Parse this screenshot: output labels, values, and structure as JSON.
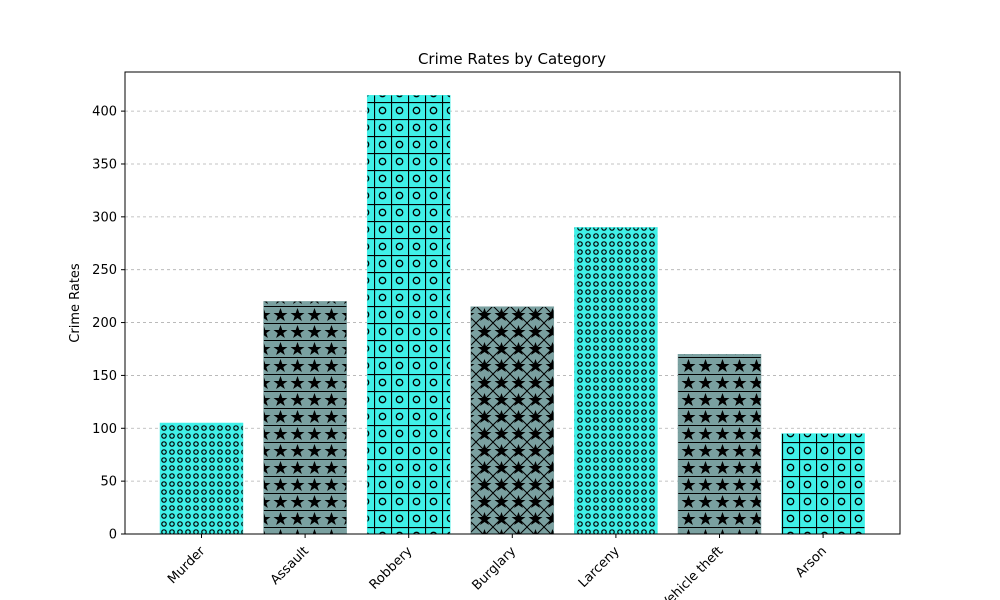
{
  "chart_data": {
    "type": "bar",
    "title": "Crime Rates by Category",
    "xlabel": "",
    "ylabel": "Crime Rates",
    "categories": [
      "Murder",
      "Assault",
      "Robbery",
      "Burglary",
      "Larceny",
      "Vehicle theft",
      "Arson"
    ],
    "values": [
      105,
      220,
      415,
      215,
      290,
      170,
      95
    ],
    "ylim": [
      0,
      437
    ],
    "yticks": [
      0,
      50,
      100,
      150,
      200,
      250,
      300,
      350,
      400
    ],
    "grid": "y-dashed",
    "bar_colors": [
      "#40f0e8",
      "#7aa0a0",
      "#40f0e8",
      "#7aa0a0",
      "#40f0e8",
      "#7aa0a0",
      "#40f0e8"
    ],
    "bar_patterns": [
      "small-circles",
      "stars-hlines",
      "circles-grid",
      "stars-crosshatch",
      "small-circles",
      "stars-hlines",
      "circles-grid"
    ]
  }
}
